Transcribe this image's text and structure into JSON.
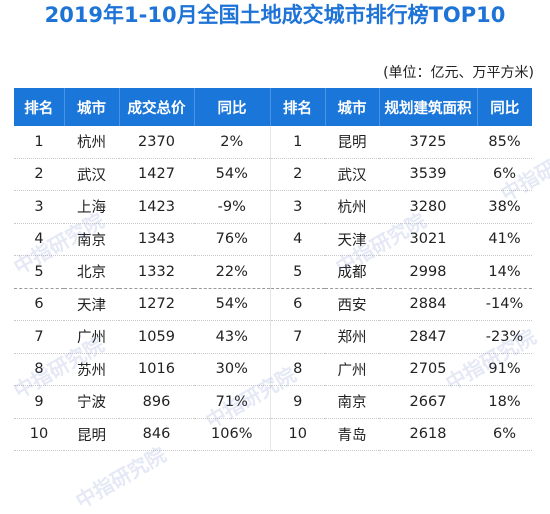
{
  "title": "2019年1-10月全国土地成交城市排行榜TOP10",
  "unit": "(单位：亿元、万平方米)",
  "headers": [
    "排名",
    "城市",
    "成交总价",
    "同比",
    "排名",
    "城市",
    "规划建筑面积",
    "同比"
  ],
  "rows": [
    {
      "rank": "1",
      "city": "杭州",
      "total": "2370",
      "yoy": "2%",
      "rank2": "1",
      "city2": "昆明",
      "area": "3725",
      "yoy2": "85%"
    },
    {
      "rank": "2",
      "city": "武汉",
      "total": "1427",
      "yoy": "54%",
      "rank2": "2",
      "city2": "武汉",
      "area": "3539",
      "yoy2": "6%"
    },
    {
      "rank": "3",
      "city": "上海",
      "total": "1423",
      "yoy": "-9%",
      "rank2": "3",
      "city2": "杭州",
      "area": "3280",
      "yoy2": "38%"
    },
    {
      "rank": "4",
      "city": "南京",
      "total": "1343",
      "yoy": "76%",
      "rank2": "4",
      "city2": "天津",
      "area": "3021",
      "yoy2": "41%"
    },
    {
      "rank": "5",
      "city": "北京",
      "total": "1332",
      "yoy": "22%",
      "rank2": "5",
      "city2": "成都",
      "area": "2998",
      "yoy2": "14%"
    },
    {
      "rank": "6",
      "city": "天津",
      "total": "1272",
      "yoy": "54%",
      "rank2": "6",
      "city2": "西安",
      "area": "2884",
      "yoy2": "-14%"
    },
    {
      "rank": "7",
      "city": "广州",
      "total": "1059",
      "yoy": "43%",
      "rank2": "7",
      "city2": "郑州",
      "area": "2847",
      "yoy2": "-23%"
    },
    {
      "rank": "8",
      "city": "苏州",
      "total": "1016",
      "yoy": "30%",
      "rank2": "8",
      "city2": "广州",
      "area": "2705",
      "yoy2": "91%"
    },
    {
      "rank": "9",
      "city": "宁波",
      "total": "896",
      "yoy": "71%",
      "rank2": "9",
      "city2": "南京",
      "area": "2667",
      "yoy2": "18%"
    },
    {
      "rank": "10",
      "city": "昆明",
      "total": "846",
      "yoy": "106%",
      "rank2": "10",
      "city2": "青岛",
      "area": "2618",
      "yoy2": "6%"
    }
  ],
  "watermark": "中指研究院",
  "colors": {
    "header_bg": "#1a76d8",
    "title": "#1e73d6"
  }
}
